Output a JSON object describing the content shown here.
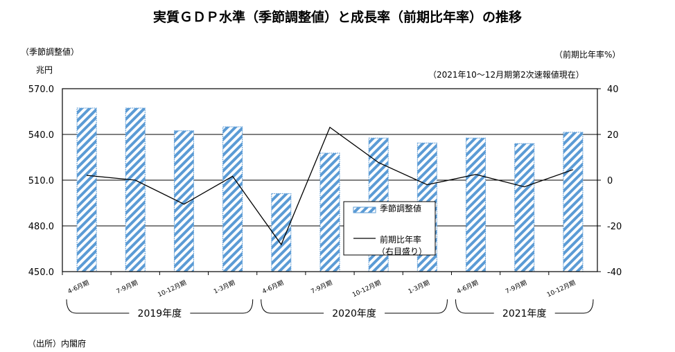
{
  "chart_data": {
    "type": "bar",
    "title": "実質ＧＤＰ水準（季節調整値）と成長率（前期比年率）の推移",
    "left_axis_label": "（季節調整値）",
    "left_axis_unit": "兆円",
    "right_axis_label": "（前期比年率%）",
    "subtitle": "（2021年10～12月期第2次速報値現在）",
    "source": "（出所）内閣府",
    "categories": [
      "4-6月期",
      "7-9月期",
      "10-12月期",
      "1-3月期",
      "4-6月期",
      "7-9月期",
      "10-12月期",
      "1-3月期",
      "4-6月期",
      "7-9月期",
      "10-12月期"
    ],
    "groups": [
      {
        "label": "2019年度",
        "from": 0,
        "to": 3
      },
      {
        "label": "2020年度",
        "from": 4,
        "to": 7
      },
      {
        "label": "2021年度",
        "from": 8,
        "to": 10
      }
    ],
    "ylim": [
      450,
      570
    ],
    "yticks": [
      "450.0",
      "480.0",
      "510.0",
      "540.0",
      "570.0"
    ],
    "y2lim": [
      -40,
      40
    ],
    "y2ticks": [
      "-40",
      "-20",
      "0",
      "20",
      "40"
    ],
    "series": [
      {
        "name": "季節調整値",
        "type": "bar",
        "axis": "left",
        "values": [
          557.3,
          557.3,
          542.4,
          545.0,
          501.2,
          527.7,
          537.6,
          534.4,
          537.6,
          534.0,
          541.4
        ]
      },
      {
        "name": "前期比年率",
        "name2": "（右目盛り）",
        "type": "line",
        "axis": "right",
        "values": [
          2.1,
          0.0,
          -10.5,
          1.7,
          -28.2,
          23.1,
          7.7,
          -2.0,
          2.5,
          -2.9,
          4.6
        ]
      }
    ],
    "colors": {
      "bar": "#5b9bd5",
      "line": "#000000"
    },
    "grid": true,
    "legend": "center-inside"
  }
}
